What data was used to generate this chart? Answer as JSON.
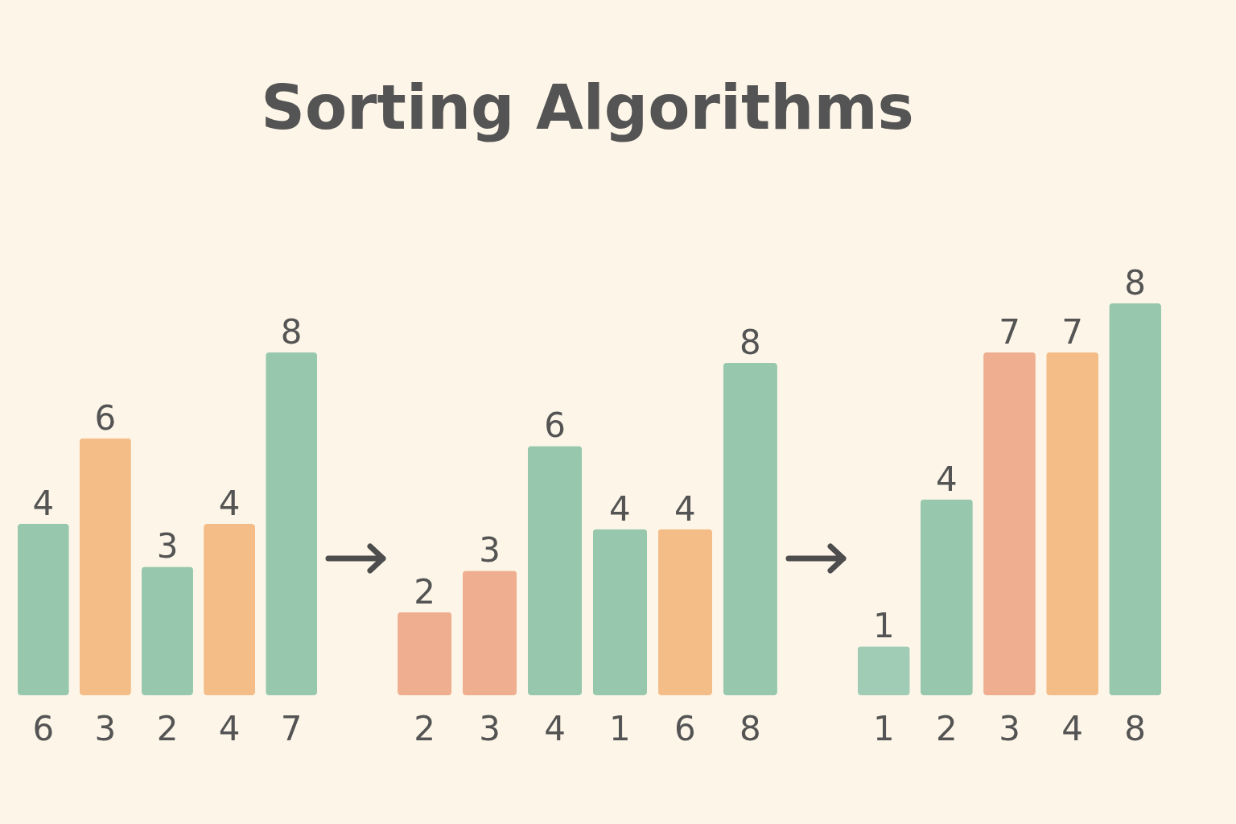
{
  "chart_data": [
    {
      "type": "bar",
      "categories": [
        "6",
        "3",
        "2",
        "4",
        "7"
      ],
      "values": [
        4,
        6,
        3,
        4,
        8
      ],
      "data_labels": true,
      "tick_labels": "x",
      "colors": [
        "#97c8ad",
        "#f4bd88",
        "#97c8ad",
        "#f4bd88",
        "#97c8ad"
      ]
    },
    {
      "type": "bar",
      "title": "Sorting Algorithms",
      "categories": [
        "2",
        "3",
        "4",
        "1",
        "6",
        "8"
      ],
      "values": [
        2,
        3,
        6,
        4,
        4,
        8
      ],
      "data_labels": true,
      "tick_labels": "x",
      "colors": [
        "#efae90",
        "#efae90",
        "#97c8ad",
        "#97c8ad",
        "#f4bd88",
        "#97c8ad"
      ]
    },
    {
      "type": "bar",
      "categories": [
        "1",
        "2",
        "3",
        "4",
        "8"
      ],
      "values": [
        1,
        4,
        7,
        7,
        8
      ],
      "data_labels": true,
      "tick_labels": "x",
      "colors": [
        "#a0ccb5",
        "#97c8ad",
        "#efae90",
        "#f4bd88",
        "#97c8ad"
      ]
    }
  ]
}
